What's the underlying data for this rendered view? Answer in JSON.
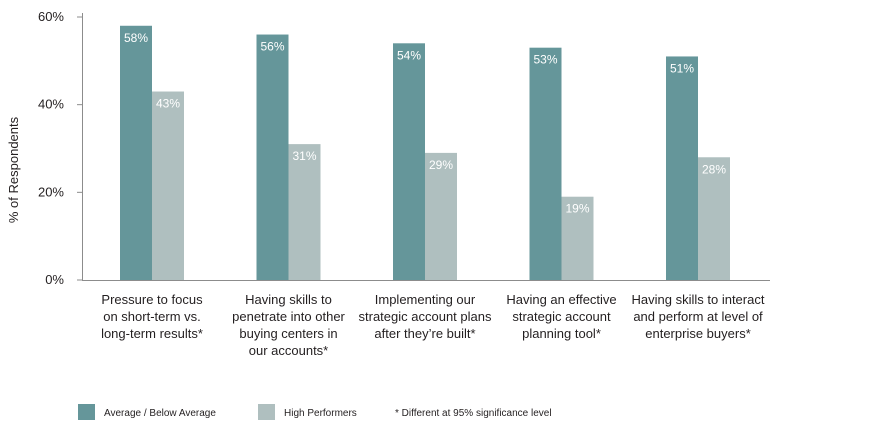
{
  "chart_data": {
    "type": "bar",
    "ylabel": "% of Respondents",
    "ylim": [
      0,
      60
    ],
    "yticks": [
      "0%",
      "20%",
      "40%",
      "60%"
    ],
    "ytick_values": [
      0,
      20,
      40,
      60
    ],
    "categories": [
      [
        "Pressure to focus",
        "on short-term vs.",
        "long-term results*"
      ],
      [
        "Having skills to",
        "penetrate into other",
        "buying centers in",
        "our accounts*"
      ],
      [
        "Implementing our",
        "strategic account plans",
        "after they’re built*"
      ],
      [
        "Having an effective",
        "strategic account",
        "planning tool*"
      ],
      [
        "Having skills to interact",
        "and perform at level of",
        "enterprise buyers*"
      ]
    ],
    "series": [
      {
        "name": "Average / Below Average",
        "color": "#65969a",
        "values": [
          58,
          56,
          54,
          53,
          51
        ],
        "labels": [
          "58%",
          "56%",
          "54%",
          "53%",
          "51%"
        ]
      },
      {
        "name": "High Performers",
        "color": "#afbfbf",
        "values": [
          43,
          31,
          29,
          19,
          28
        ],
        "labels": [
          "43%",
          "31%",
          "29%",
          "19%",
          "28%"
        ]
      }
    ],
    "note": "* Different at 95% significance level",
    "grid": false,
    "legend_position": "bottom-left"
  }
}
